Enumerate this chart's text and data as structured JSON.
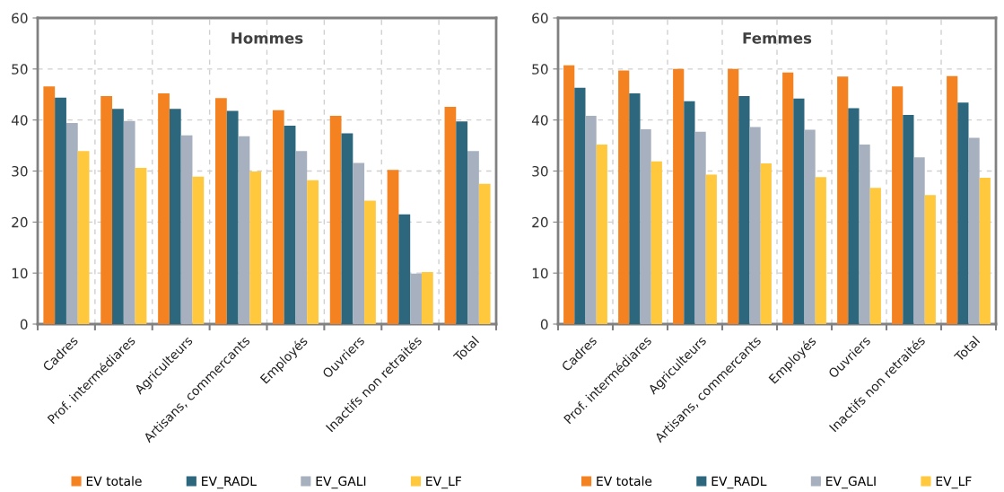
{
  "chart_data": [
    {
      "type": "bar",
      "title": "Hommes",
      "categories": [
        "Cadres",
        "Prof. intermédiares",
        "Agriculteurs",
        "Artisans, commercants",
        "Employés",
        "Ouvriers",
        "Inactifs non retraités",
        "Total"
      ],
      "series": [
        {
          "name": "EV totale",
          "color": "#f58220",
          "values": [
            46.6,
            44.7,
            45.2,
            44.3,
            41.9,
            40.8,
            30.2,
            42.6
          ]
        },
        {
          "name": "EV_RADL",
          "color": "#2c677e",
          "values": [
            44.4,
            42.2,
            42.2,
            41.8,
            38.9,
            37.4,
            21.5,
            39.7
          ]
        },
        {
          "name": "EV_GALI",
          "color": "#a6b0be",
          "values": [
            39.4,
            39.8,
            37.0,
            36.8,
            33.9,
            31.6,
            9.9,
            33.9
          ]
        },
        {
          "name": "EV_LF",
          "color": "#ffc83d",
          "values": [
            33.9,
            30.6,
            28.9,
            29.9,
            28.2,
            24.2,
            10.2,
            27.5
          ]
        }
      ],
      "ylim": [
        0,
        60
      ],
      "yticks": [
        0,
        10,
        20,
        30,
        40,
        50,
        60
      ],
      "grid": true,
      "legend": "bottom"
    },
    {
      "type": "bar",
      "title": "Femmes",
      "categories": [
        "Cadres",
        "Prof. intermédiares",
        "Agriculteurs",
        "Artisans, commercants",
        "Employés",
        "Ouvriers",
        "Inactifs non retraités",
        "Total"
      ],
      "series": [
        {
          "name": "EV totale",
          "color": "#f58220",
          "values": [
            50.7,
            49.7,
            50.0,
            50.0,
            49.3,
            48.5,
            46.6,
            48.6
          ]
        },
        {
          "name": "EV_RADL",
          "color": "#2c677e",
          "values": [
            46.3,
            45.2,
            43.7,
            44.7,
            44.2,
            42.3,
            41.0,
            43.4
          ]
        },
        {
          "name": "EV_GALI",
          "color": "#a6b0be",
          "values": [
            40.8,
            38.2,
            37.7,
            38.6,
            38.1,
            35.2,
            32.7,
            36.5
          ]
        },
        {
          "name": "EV_LF",
          "color": "#ffc83d",
          "values": [
            35.2,
            31.9,
            29.3,
            31.5,
            28.8,
            26.7,
            25.3,
            28.7
          ]
        }
      ],
      "ylim": [
        0,
        60
      ],
      "yticks": [
        0,
        10,
        20,
        30,
        40,
        50,
        60
      ],
      "grid": true,
      "legend": "bottom"
    }
  ]
}
